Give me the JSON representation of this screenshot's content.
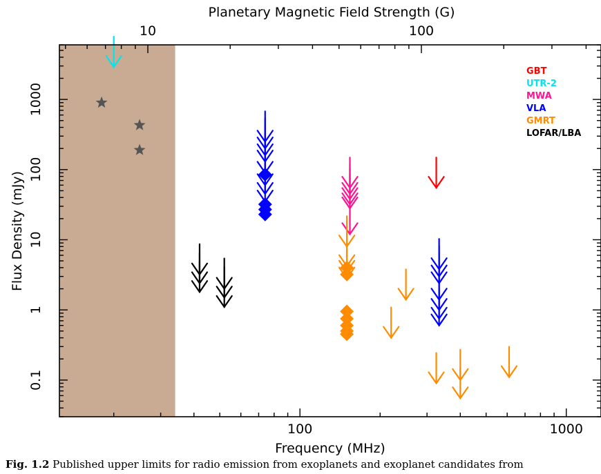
{
  "chart_data": {
    "type": "scatter",
    "title": "",
    "xlabel": "Frequency (MHz)",
    "ylabel": "Flux Density (mJy)",
    "top_axis_label": "Planetary Magnetic Field Strength (G)",
    "x_scale": "log",
    "y_scale": "log",
    "xlim": [
      12.5,
      1350
    ],
    "ylim": [
      0.03,
      6000
    ],
    "x_ticks": [
      100,
      1000
    ],
    "x_tick_labels": [
      "100",
      "1000"
    ],
    "y_ticks": [
      0.1,
      1,
      10,
      100,
      1000
    ],
    "y_tick_labels": [
      "0.1",
      "1",
      "10",
      "100",
      "1000"
    ],
    "top_ticks_gauss": [
      10,
      100
    ],
    "top_tick_labels": [
      "10",
      "100"
    ],
    "shaded_region": {
      "x_range": [
        12.5,
        34
      ],
      "color": "#c8ab92"
    },
    "grid": false,
    "legend_position": "top-right",
    "series": [
      {
        "name": "GBT",
        "color": "#ff0000",
        "upper_limits": [
          {
            "x": 325,
            "y": 55
          }
        ],
        "detections": [],
        "stars": []
      },
      {
        "name": "UTR-2",
        "color": "#00e5ee",
        "upper_limits": [
          {
            "x": 20,
            "y": 2900
          }
        ],
        "detections": [],
        "stars": []
      },
      {
        "name": "MWA",
        "color": "#ff1493",
        "upper_limits": [
          {
            "x": 154,
            "y": 55
          },
          {
            "x": 154,
            "y": 45
          },
          {
            "x": 154,
            "y": 38
          },
          {
            "x": 154,
            "y": 32
          },
          {
            "x": 154,
            "y": 28
          },
          {
            "x": 154,
            "y": 12
          }
        ],
        "detections": [],
        "stars": []
      },
      {
        "name": "VLA",
        "color": "#0000ff",
        "upper_limits": [
          {
            "x": 74,
            "y": 250
          },
          {
            "x": 74,
            "y": 200
          },
          {
            "x": 74,
            "y": 160
          },
          {
            "x": 74,
            "y": 130
          },
          {
            "x": 74,
            "y": 90
          },
          {
            "x": 74,
            "y": 60
          },
          {
            "x": 74,
            "y": 45
          },
          {
            "x": 74,
            "y": 35
          },
          {
            "x": 333,
            "y": 3.8
          },
          {
            "x": 333,
            "y": 3.0
          },
          {
            "x": 333,
            "y": 2.4
          },
          {
            "x": 333,
            "y": 1.4
          },
          {
            "x": 333,
            "y": 1.0
          },
          {
            "x": 333,
            "y": 0.75
          },
          {
            "x": 333,
            "y": 0.6
          }
        ],
        "detections": [
          {
            "x": 74,
            "y": 85
          },
          {
            "x": 74,
            "y": 32
          },
          {
            "x": 74,
            "y": 27
          },
          {
            "x": 74,
            "y": 23
          }
        ],
        "stars": []
      },
      {
        "name": "GMRT",
        "color": "#ff8c00",
        "upper_limits": [
          {
            "x": 150,
            "y": 8
          },
          {
            "x": 150,
            "y": 4.2
          },
          {
            "x": 150,
            "y": 3.5
          },
          {
            "x": 150,
            "y": 2.8
          },
          {
            "x": 250,
            "y": 1.4
          },
          {
            "x": 220,
            "y": 0.4
          },
          {
            "x": 325,
            "y": 0.09
          },
          {
            "x": 400,
            "y": 0.1
          },
          {
            "x": 400,
            "y": 0.055
          },
          {
            "x": 610,
            "y": 0.11
          }
        ],
        "detections": [
          {
            "x": 150,
            "y": 4.0
          },
          {
            "x": 150,
            "y": 3.2
          },
          {
            "x": 150,
            "y": 0.95
          },
          {
            "x": 150,
            "y": 0.75
          },
          {
            "x": 150,
            "y": 0.6
          },
          {
            "x": 150,
            "y": 0.5
          },
          {
            "x": 150,
            "y": 0.45
          }
        ],
        "stars": []
      },
      {
        "name": "LOFAR/LBA",
        "color": "#000000",
        "upper_limits": [
          {
            "x": 42,
            "y": 3.2
          },
          {
            "x": 42,
            "y": 2.4
          },
          {
            "x": 42,
            "y": 1.8
          },
          {
            "x": 52,
            "y": 2.0
          },
          {
            "x": 52,
            "y": 1.5
          },
          {
            "x": 52,
            "y": 1.1
          }
        ],
        "detections": [],
        "stars": []
      },
      {
        "color": "#555555",
        "upper_limits": [],
        "detections": [],
        "stars": [
          {
            "x": 18,
            "y": 900
          },
          {
            "x": 25,
            "y": 430
          },
          {
            "x": 25,
            "y": 190
          }
        ]
      }
    ]
  },
  "caption": {
    "prefix": "Fig. 1.2",
    "text": " Published upper limits for radio emission from exoplanets and exoplanet candidates from"
  }
}
